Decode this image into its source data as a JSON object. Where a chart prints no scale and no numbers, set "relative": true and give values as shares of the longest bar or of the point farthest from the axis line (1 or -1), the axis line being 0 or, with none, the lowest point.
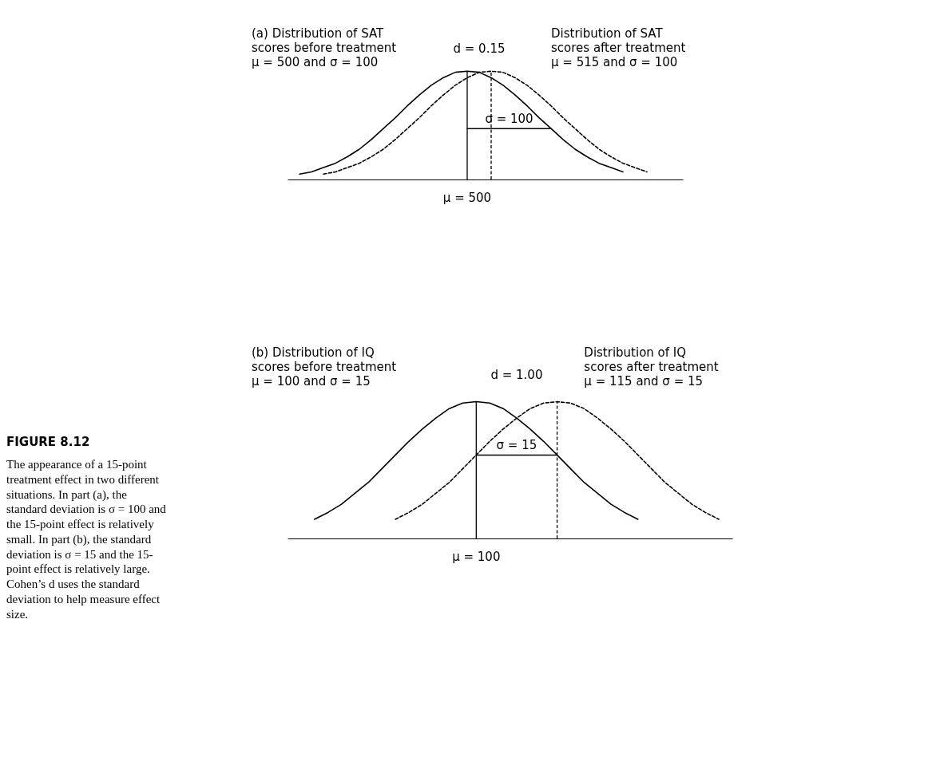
{
  "chart_data": [
    {
      "type": "line",
      "relative": true,
      "categories": [
        null,
        null,
        null,
        null,
        null,
        null,
        null,
        null,
        null,
        null,
        null,
        null,
        null,
        null,
        null,
        null,
        null,
        null,
        null,
        null,
        null,
        null,
        null,
        null,
        null,
        null,
        null,
        null,
        null,
        null,
        null,
        null,
        null,
        null
      ],
      "series": [
        {
          "color": "#000000",
          "line_style": "solid",
          "values": [
            null,
            0.05,
            0.07,
            0.11,
            0.15,
            0.21,
            0.28,
            0.37,
            0.47,
            0.57,
            0.68,
            0.78,
            0.87,
            0.94,
            0.99,
            1,
            0.99,
            0.94,
            0.87,
            0.78,
            0.68,
            0.57,
            0.47,
            0.37,
            0.28,
            0.21,
            0.15,
            0.11,
            0.07,
            null,
            null,
            null,
            null,
            null
          ]
        },
        {
          "color": "#000000",
          "line_style": "dashed",
          "values": [
            null,
            null,
            null,
            0.05,
            0.07,
            0.11,
            0.15,
            0.21,
            0.28,
            0.37,
            0.47,
            0.57,
            0.68,
            0.78,
            0.87,
            0.94,
            0.99,
            1,
            0.99,
            0.94,
            0.87,
            0.78,
            0.68,
            0.57,
            0.47,
            0.37,
            0.28,
            0.21,
            0.15,
            0.11,
            0.07,
            null,
            null,
            null
          ]
        },
        {
          "color": "#000000",
          "line_style": "solid",
          "values": [
            null,
            null,
            null,
            null,
            null,
            null,
            null,
            null,
            null,
            null,
            null,
            null,
            null,
            null,
            null,
            0.47,
            0.47,
            0.47,
            0.47,
            0.47,
            0.47,
            0.47,
            0.47,
            null,
            null,
            null,
            null,
            null,
            null,
            null,
            null,
            null,
            null,
            null
          ]
        }
      ],
      "annotations": [
        "(a)  Distribution of SAT\n       scores before treatment\n       μ = 500 and σ = 100",
        "Distribution of SAT\nscores after treatment\nμ = 515 and σ = 100",
        "d = 0.15",
        "σ = 100",
        "μ = 500"
      ]
    },
    {
      "type": "line",
      "relative": true,
      "categories": [
        null,
        null,
        null,
        null,
        null,
        null,
        null,
        null,
        null,
        null,
        null,
        null,
        null,
        null,
        null,
        null,
        null,
        null,
        null,
        null,
        null,
        null,
        null,
        null,
        null,
        null,
        null,
        null,
        null,
        null,
        null,
        null,
        null,
        null
      ],
      "series": [
        {
          "color": "#000000",
          "line_style": "solid",
          "values": [
            null,
            null,
            0.14,
            0.19,
            0.25,
            0.33,
            0.41,
            0.51,
            0.61,
            0.71,
            0.8,
            0.88,
            0.95,
            0.99,
            1,
            0.99,
            0.95,
            0.88,
            0.8,
            0.71,
            0.61,
            0.51,
            0.41,
            0.33,
            0.25,
            0.19,
            0.14,
            null,
            null,
            null,
            null,
            null,
            null,
            null
          ]
        },
        {
          "color": "#000000",
          "line_style": "dashed",
          "values": [
            null,
            null,
            null,
            null,
            null,
            null,
            null,
            null,
            0.14,
            0.19,
            0.25,
            0.33,
            0.41,
            0.51,
            0.61,
            0.71,
            0.8,
            0.88,
            0.95,
            0.99,
            1,
            0.99,
            0.95,
            0.88,
            0.8,
            0.71,
            0.61,
            0.51,
            0.41,
            0.33,
            0.25,
            0.19,
            0.14,
            null
          ]
        },
        {
          "color": "#000000",
          "line_style": "solid",
          "values": [
            null,
            null,
            null,
            null,
            null,
            null,
            null,
            null,
            null,
            null,
            null,
            null,
            null,
            null,
            0.61,
            0.61,
            0.61,
            0.61,
            0.61,
            0.61,
            0.61,
            null,
            null,
            null,
            null,
            null,
            null,
            null,
            null,
            null,
            null,
            null,
            null,
            null
          ]
        }
      ],
      "annotations": [
        "(b)  Distribution of IQ\n       scores before treatment\n       μ = 100 and σ = 15",
        "Distribution of IQ\nscores after treatment\nμ = 115 and σ = 15",
        "d = 1.00",
        "σ = 15",
        "μ = 100"
      ]
    },
    {
      "type": "other",
      "title": "FIGURE 8.12",
      "annotations": [
        "The appearance of a 15-point treatment effect in two different situations. In part (a), the standard deviation is σ = 100 and the 15-point effect is relatively small. In part (b), the standard deviation is σ = 15 and the 15-point effect is relatively large. Cohen’s d uses the standard deviation to help measure effect size."
      ]
    }
  ]
}
